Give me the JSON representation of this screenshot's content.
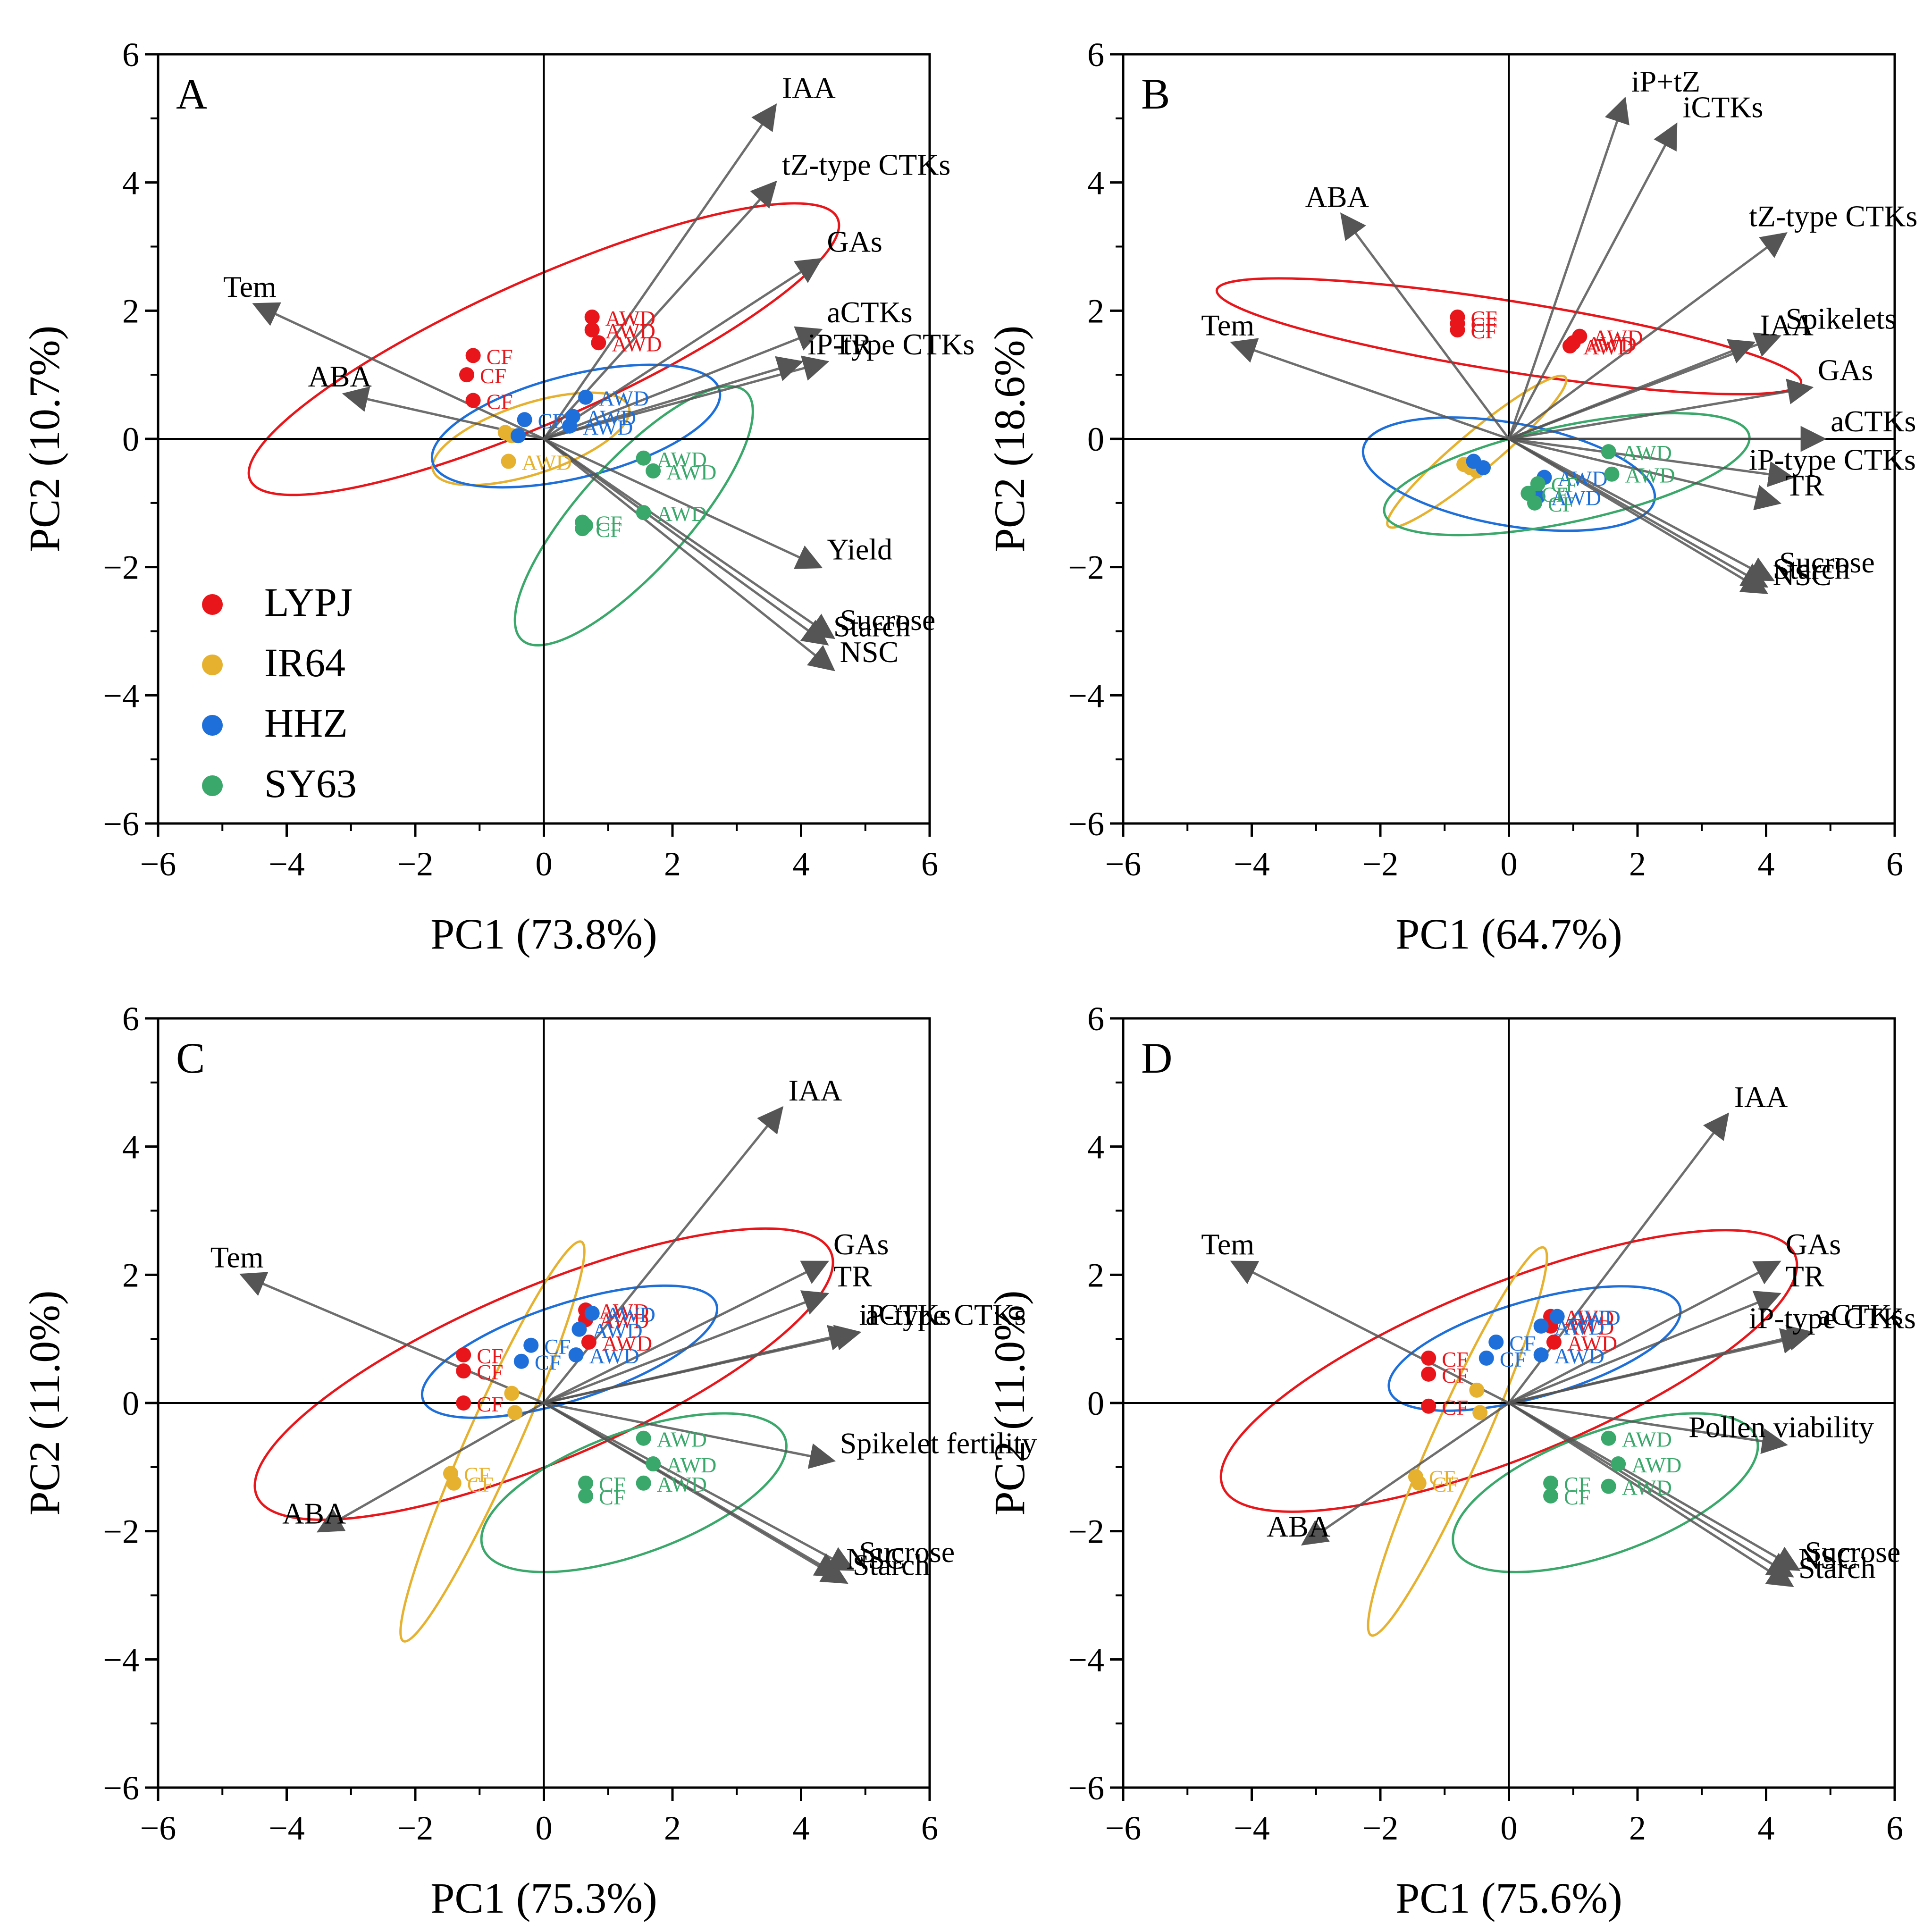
{
  "chart_data": [
    {
      "panel": "A",
      "type": "scatter",
      "title": "",
      "xlabel": "PC1 (73.8%)",
      "ylabel": "PC2 (10.7%)",
      "xlim": [
        -6,
        6
      ],
      "ylim": [
        -6,
        6
      ],
      "xticks": [
        -6,
        -4,
        -2,
        0,
        2,
        4,
        6
      ],
      "yticks": [
        -6,
        -4,
        -2,
        0,
        2,
        4,
        6
      ],
      "tick_labels": [
        "−6",
        "−4",
        "−2",
        "0",
        "2",
        "4",
        "6"
      ],
      "legend": {
        "placement": "bottom-left",
        "entries": [
          {
            "name": "LYPJ",
            "color": "#e8161b"
          },
          {
            "name": "IR64",
            "color": "#e6b12e"
          },
          {
            "name": "HHZ",
            "color": "#1e6fd9"
          },
          {
            "name": "SY63",
            "color": "#3aa86a"
          }
        ]
      },
      "loadings": [
        {
          "label": "IAA",
          "x": 3.6,
          "y": 5.2
        },
        {
          "label": "tZ-type CTKs",
          "x": 3.6,
          "y": 4.0
        },
        {
          "label": "GAs",
          "x": 4.3,
          "y": 2.8
        },
        {
          "label": "aCTKs",
          "x": 4.3,
          "y": 1.7
        },
        {
          "label": "TR",
          "x": 4.4,
          "y": 1.2
        },
        {
          "label": "iP-type CTKs",
          "x": 4.0,
          "y": 1.2
        },
        {
          "label": "Yield",
          "x": 4.3,
          "y": -2.0
        },
        {
          "label": "Sucrose",
          "x": 4.5,
          "y": -3.1
        },
        {
          "label": "Starch",
          "x": 4.4,
          "y": -3.2
        },
        {
          "label": "NSC",
          "x": 4.5,
          "y": -3.6
        },
        {
          "label": "Tem",
          "x": -4.5,
          "y": 2.1
        },
        {
          "label": "ABA",
          "x": -3.1,
          "y": 0.7
        }
      ],
      "points": [
        {
          "group": "LYPJ",
          "tag": "CF",
          "x": -1.1,
          "y": 1.3
        },
        {
          "group": "LYPJ",
          "tag": "CF",
          "x": -1.2,
          "y": 1.0
        },
        {
          "group": "LYPJ",
          "tag": "CF",
          "x": -1.1,
          "y": 0.6
        },
        {
          "group": "LYPJ",
          "tag": "AWD",
          "x": 0.75,
          "y": 1.9
        },
        {
          "group": "LYPJ",
          "tag": "AWD",
          "x": 0.75,
          "y": 1.7
        },
        {
          "group": "LYPJ",
          "tag": "AWD",
          "x": 0.85,
          "y": 1.5
        },
        {
          "group": "IR64",
          "tag": "",
          "x": -0.6,
          "y": 0.1
        },
        {
          "group": "IR64",
          "tag": "",
          "x": -0.5,
          "y": 0.05
        },
        {
          "group": "IR64",
          "tag": "AWD",
          "x": -0.55,
          "y": -0.35
        },
        {
          "group": "HHZ",
          "tag": "CF",
          "x": -0.3,
          "y": 0.3
        },
        {
          "group": "HHZ",
          "tag": "",
          "x": -0.4,
          "y": 0.05
        },
        {
          "group": "HHZ",
          "tag": "AWD",
          "x": 0.65,
          "y": 0.65
        },
        {
          "group": "HHZ",
          "tag": "AWD",
          "x": 0.45,
          "y": 0.35
        },
        {
          "group": "HHZ",
          "tag": "AWD",
          "x": 0.4,
          "y": 0.2
        },
        {
          "group": "SY63",
          "tag": "AWD",
          "x": 1.55,
          "y": -0.3
        },
        {
          "group": "SY63",
          "tag": "AWD",
          "x": 1.7,
          "y": -0.5
        },
        {
          "group": "SY63",
          "tag": "AWD",
          "x": 1.55,
          "y": -1.15
        },
        {
          "group": "SY63",
          "tag": "CF",
          "x": 0.6,
          "y": -1.3
        },
        {
          "group": "SY63",
          "tag": "CF",
          "x": 0.6,
          "y": -1.4
        },
        {
          "group": "SY63",
          "tag": "",
          "x": 0.65,
          "y": -1.35
        }
      ],
      "ellipses": [
        {
          "group": "LYPJ",
          "cx": 0.0,
          "cy": 1.4,
          "rx": 5.0,
          "ry": 1.1,
          "angle_deg": 24
        },
        {
          "group": "IR64",
          "cx": -0.2,
          "cy": 0.0,
          "rx": 1.6,
          "ry": 0.55,
          "angle_deg": 18
        },
        {
          "group": "HHZ",
          "cx": 0.5,
          "cy": 0.2,
          "rx": 2.3,
          "ry": 0.8,
          "angle_deg": 14
        },
        {
          "group": "SY63",
          "cx": 1.4,
          "cy": -1.2,
          "rx": 2.6,
          "ry": 0.85,
          "angle_deg": 48
        }
      ]
    },
    {
      "panel": "B",
      "type": "scatter",
      "title": "",
      "xlabel": "PC1 (64.7%)",
      "ylabel": "PC2 (18.6%)",
      "xlim": [
        -6,
        6
      ],
      "ylim": [
        -6,
        6
      ],
      "xticks": [
        -6,
        -4,
        -2,
        0,
        2,
        4,
        6
      ],
      "yticks": [
        -6,
        -4,
        -2,
        0,
        2,
        4,
        6
      ],
      "tick_labels": [
        "−6",
        "−4",
        "−2",
        "0",
        "2",
        "4",
        "6"
      ],
      "loadings": [
        {
          "label": "iP+tZ",
          "x": 1.8,
          "y": 5.3
        },
        {
          "label": "iCTKs",
          "x": 2.6,
          "y": 4.9
        },
        {
          "label": "ABA",
          "x": -2.6,
          "y": 3.5
        },
        {
          "label": "tZ-type CTKs",
          "x": 4.3,
          "y": 3.2
        },
        {
          "label": "Spikelets",
          "x": 4.2,
          "y": 1.6
        },
        {
          "label": "IAA",
          "x": 3.8,
          "y": 1.5
        },
        {
          "label": "Tem",
          "x": -4.3,
          "y": 1.5
        },
        {
          "label": "GAs",
          "x": 4.7,
          "y": 0.8
        },
        {
          "label": "aCTKs",
          "x": 4.9,
          "y": 0.0
        },
        {
          "label": "iP-type CTKs",
          "x": 4.4,
          "y": -0.6
        },
        {
          "label": "TR",
          "x": 4.2,
          "y": -1.0
        },
        {
          "label": "Sucrose",
          "x": 4.1,
          "y": -2.2
        },
        {
          "label": "Starch",
          "x": 4.0,
          "y": -2.3
        },
        {
          "label": "NSC",
          "x": 4.0,
          "y": -2.4
        }
      ],
      "points": [
        {
          "group": "LYPJ",
          "tag": "CF",
          "x": -0.8,
          "y": 1.9
        },
        {
          "group": "LYPJ",
          "tag": "CF",
          "x": -0.8,
          "y": 1.8
        },
        {
          "group": "LYPJ",
          "tag": "CF",
          "x": -0.8,
          "y": 1.7
        },
        {
          "group": "LYPJ",
          "tag": "AWD",
          "x": 1.1,
          "y": 1.6
        },
        {
          "group": "LYPJ",
          "tag": "AWD",
          "x": 1.0,
          "y": 1.5
        },
        {
          "group": "LYPJ",
          "tag": "AWD",
          "x": 0.95,
          "y": 1.45
        },
        {
          "group": "IR64",
          "tag": "",
          "x": -0.7,
          "y": -0.4
        },
        {
          "group": "IR64",
          "tag": "",
          "x": -0.6,
          "y": -0.45
        },
        {
          "group": "IR64",
          "tag": "",
          "x": -0.5,
          "y": -0.5
        },
        {
          "group": "HHZ",
          "tag": "",
          "x": -0.55,
          "y": -0.35
        },
        {
          "group": "HHZ",
          "tag": "",
          "x": -0.4,
          "y": -0.45
        },
        {
          "group": "HHZ",
          "tag": "",
          "x": 0.35,
          "y": -0.85
        },
        {
          "group": "HHZ",
          "tag": "AWD",
          "x": 0.55,
          "y": -0.6
        },
        {
          "group": "HHZ",
          "tag": "AWD",
          "x": 0.45,
          "y": -0.9
        },
        {
          "group": "SY63",
          "tag": "AWD",
          "x": 1.55,
          "y": -0.2
        },
        {
          "group": "SY63",
          "tag": "AWD",
          "x": 1.6,
          "y": -0.55
        },
        {
          "group": "SY63",
          "tag": "CF",
          "x": 0.45,
          "y": -0.7
        },
        {
          "group": "SY63",
          "tag": "CF",
          "x": 0.4,
          "y": -1.0
        },
        {
          "group": "SY63",
          "tag": "CF",
          "x": 0.3,
          "y": -0.85
        }
      ],
      "ellipses": [
        {
          "group": "LYPJ",
          "cx": 0.0,
          "cy": 1.6,
          "rx": 4.6,
          "ry": 0.55,
          "angle_deg": -9
        },
        {
          "group": "IR64",
          "cx": -0.5,
          "cy": -0.2,
          "rx": 1.8,
          "ry": 0.3,
          "angle_deg": 40
        },
        {
          "group": "HHZ",
          "cx": 0.0,
          "cy": -0.55,
          "rx": 2.3,
          "ry": 0.8,
          "angle_deg": -10
        },
        {
          "group": "SY63",
          "cx": 0.9,
          "cy": -0.55,
          "rx": 2.9,
          "ry": 0.75,
          "angle_deg": 12
        }
      ]
    },
    {
      "panel": "C",
      "type": "scatter",
      "title": "",
      "xlabel": "PC1 (75.3%)",
      "ylabel": "PC2 (11.0%)",
      "xlim": [
        -6,
        6
      ],
      "ylim": [
        -6,
        6
      ],
      "xticks": [
        -6,
        -4,
        -2,
        0,
        2,
        4,
        6
      ],
      "yticks": [
        -6,
        -4,
        -2,
        0,
        2,
        4,
        6
      ],
      "tick_labels": [
        "−6",
        "−4",
        "−2",
        "0",
        "2",
        "4",
        "6"
      ],
      "loadings": [
        {
          "label": "IAA",
          "x": 3.7,
          "y": 4.6
        },
        {
          "label": "GAs",
          "x": 4.4,
          "y": 2.2
        },
        {
          "label": "TR",
          "x": 4.4,
          "y": 1.7
        },
        {
          "label": "aCTKs",
          "x": 4.9,
          "y": 1.1
        },
        {
          "label": "iP-type CTKs",
          "x": 4.8,
          "y": 1.1
        },
        {
          "label": "Spikelet fertility",
          "x": 4.5,
          "y": -0.9
        },
        {
          "label": "Sucrose",
          "x": 4.8,
          "y": -2.6
        },
        {
          "label": "Starch",
          "x": 4.7,
          "y": -2.8
        },
        {
          "label": "NSC",
          "x": 4.6,
          "y": -2.7
        },
        {
          "label": "Tem",
          "x": -4.7,
          "y": 2.0
        },
        {
          "label": "ABA",
          "x": -3.5,
          "y": -2.0
        }
      ],
      "points": [
        {
          "group": "LYPJ",
          "tag": "CF",
          "x": -1.25,
          "y": 0.75
        },
        {
          "group": "LYPJ",
          "tag": "CF",
          "x": -1.25,
          "y": 0.5
        },
        {
          "group": "LYPJ",
          "tag": "CF",
          "x": -1.25,
          "y": 0.0
        },
        {
          "group": "LYPJ",
          "tag": "AWD",
          "x": 0.65,
          "y": 1.45
        },
        {
          "group": "LYPJ",
          "tag": "AWD",
          "x": 0.65,
          "y": 1.3
        },
        {
          "group": "LYPJ",
          "tag": "AWD",
          "x": 0.7,
          "y": 0.95
        },
        {
          "group": "IR64",
          "tag": "CF",
          "x": -1.45,
          "y": -1.1
        },
        {
          "group": "IR64",
          "tag": "CF",
          "x": -1.4,
          "y": -1.25
        },
        {
          "group": "IR64",
          "tag": "",
          "x": -0.5,
          "y": 0.15
        },
        {
          "group": "IR64",
          "tag": "",
          "x": -0.45,
          "y": -0.15
        },
        {
          "group": "HHZ",
          "tag": "CF",
          "x": -0.2,
          "y": 0.9
        },
        {
          "group": "HHZ",
          "tag": "CF",
          "x": -0.35,
          "y": 0.65
        },
        {
          "group": "HHZ",
          "tag": "AWD",
          "x": 0.55,
          "y": 1.15
        },
        {
          "group": "HHZ",
          "tag": "AWD",
          "x": 0.75,
          "y": 1.4
        },
        {
          "group": "HHZ",
          "tag": "AWD",
          "x": 0.5,
          "y": 0.75
        },
        {
          "group": "SY63",
          "tag": "AWD",
          "x": 1.55,
          "y": -0.55
        },
        {
          "group": "SY63",
          "tag": "AWD",
          "x": 1.7,
          "y": -0.95
        },
        {
          "group": "SY63",
          "tag": "AWD",
          "x": 1.55,
          "y": -1.25
        },
        {
          "group": "SY63",
          "tag": "CF",
          "x": 0.65,
          "y": -1.25
        },
        {
          "group": "SY63",
          "tag": "CF",
          "x": 0.65,
          "y": -1.45
        }
      ],
      "ellipses": [
        {
          "group": "LYPJ",
          "cx": 0.0,
          "cy": 0.45,
          "rx": 4.85,
          "ry": 1.35,
          "angle_deg": 23
        },
        {
          "group": "IR64",
          "cx": -0.8,
          "cy": -0.6,
          "rx": 3.4,
          "ry": 0.4,
          "angle_deg": 66
        },
        {
          "group": "HHZ",
          "cx": 0.4,
          "cy": 0.8,
          "rx": 2.4,
          "ry": 0.75,
          "angle_deg": 18
        },
        {
          "group": "SY63",
          "cx": 1.4,
          "cy": -1.4,
          "rx": 2.5,
          "ry": 0.95,
          "angle_deg": 20
        }
      ]
    },
    {
      "panel": "D",
      "type": "scatter",
      "title": "",
      "xlabel": "PC1 (75.6%)",
      "ylabel": "PC2 (11.0%)",
      "xlim": [
        -6,
        6
      ],
      "ylim": [
        -6,
        6
      ],
      "xticks": [
        -6,
        -4,
        -2,
        0,
        2,
        4,
        6
      ],
      "yticks": [
        -6,
        -4,
        -2,
        0,
        2,
        4,
        6
      ],
      "tick_labels": [
        "−6",
        "−4",
        "−2",
        "0",
        "2",
        "4",
        "6"
      ],
      "loadings": [
        {
          "label": "IAA",
          "x": 3.4,
          "y": 4.5
        },
        {
          "label": "GAs",
          "x": 4.2,
          "y": 2.2
        },
        {
          "label": "TR",
          "x": 4.2,
          "y": 1.7
        },
        {
          "label": "aCTKs",
          "x": 4.7,
          "y": 1.1
        },
        {
          "label": "iP-type CTKs",
          "x": 4.6,
          "y": 1.05
        },
        {
          "label": "Pollen viability",
          "x": 4.3,
          "y": -0.65
        },
        {
          "label": "Sucrose",
          "x": 4.5,
          "y": -2.6
        },
        {
          "label": "Starch",
          "x": 4.4,
          "y": -2.85
        },
        {
          "label": "NSC",
          "x": 4.4,
          "y": -2.7
        },
        {
          "label": "Tem",
          "x": -4.3,
          "y": 2.2
        },
        {
          "label": "ABA",
          "x": -3.2,
          "y": -2.2
        }
      ],
      "points": [
        {
          "group": "LYPJ",
          "tag": "CF",
          "x": -1.25,
          "y": 0.7
        },
        {
          "group": "LYPJ",
          "tag": "CF",
          "x": -1.25,
          "y": 0.45
        },
        {
          "group": "LYPJ",
          "tag": "CF",
          "x": -1.25,
          "y": -0.05
        },
        {
          "group": "LYPJ",
          "tag": "AWD",
          "x": 0.65,
          "y": 1.35
        },
        {
          "group": "LYPJ",
          "tag": "AWD",
          "x": 0.65,
          "y": 1.2
        },
        {
          "group": "LYPJ",
          "tag": "AWD",
          "x": 0.7,
          "y": 0.95
        },
        {
          "group": "IR64",
          "tag": "CF",
          "x": -1.45,
          "y": -1.15
        },
        {
          "group": "IR64",
          "tag": "CF",
          "x": -1.4,
          "y": -1.25
        },
        {
          "group": "IR64",
          "tag": "",
          "x": -0.5,
          "y": 0.2
        },
        {
          "group": "IR64",
          "tag": "",
          "x": -0.45,
          "y": -0.15
        },
        {
          "group": "HHZ",
          "tag": "CF",
          "x": -0.2,
          "y": 0.95
        },
        {
          "group": "HHZ",
          "tag": "CF",
          "x": -0.35,
          "y": 0.7
        },
        {
          "group": "HHZ",
          "tag": "AWD",
          "x": 0.5,
          "y": 1.2
        },
        {
          "group": "HHZ",
          "tag": "AWD",
          "x": 0.75,
          "y": 1.35
        },
        {
          "group": "HHZ",
          "tag": "AWD",
          "x": 0.5,
          "y": 0.75
        },
        {
          "group": "SY63",
          "tag": "AWD",
          "x": 1.55,
          "y": -0.55
        },
        {
          "group": "SY63",
          "tag": "AWD",
          "x": 1.7,
          "y": -0.95
        },
        {
          "group": "SY63",
          "tag": "AWD",
          "x": 1.55,
          "y": -1.3
        },
        {
          "group": "SY63",
          "tag": "CF",
          "x": 0.65,
          "y": -1.25
        },
        {
          "group": "SY63",
          "tag": "CF",
          "x": 0.65,
          "y": -1.45
        }
      ],
      "ellipses": [
        {
          "group": "LYPJ",
          "cx": 0.0,
          "cy": 0.5,
          "rx": 4.8,
          "ry": 1.35,
          "angle_deg": 22
        },
        {
          "group": "IR64",
          "cx": -0.8,
          "cy": -0.6,
          "rx": 3.3,
          "ry": 0.4,
          "angle_deg": 66
        },
        {
          "group": "HHZ",
          "cx": 0.4,
          "cy": 0.85,
          "rx": 2.35,
          "ry": 0.75,
          "angle_deg": 16
        },
        {
          "group": "SY63",
          "cx": 1.5,
          "cy": -1.4,
          "rx": 2.5,
          "ry": 0.95,
          "angle_deg": 20
        }
      ]
    }
  ]
}
